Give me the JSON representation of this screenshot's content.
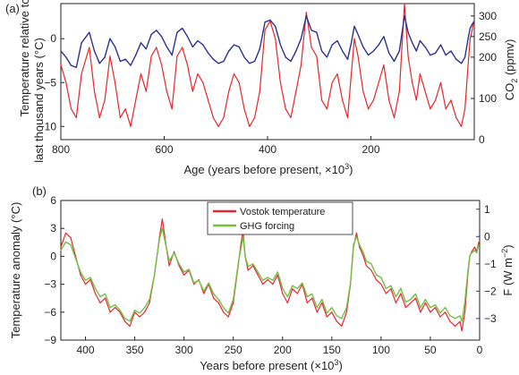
{
  "chart_data": [
    {
      "panel": "(a)",
      "type": "line",
      "xlabel_main": "Age (years before present, ",
      "xlabel_unit": "×10",
      "xlabel_exp": "3",
      "xlabel_close": ")",
      "xlim": [
        800,
        0
      ],
      "xticks": [
        800,
        600,
        400,
        200
      ],
      "ylabel_left_line1": "Temperature relative to",
      "ylabel_left_line2": "last thousand years (°C)",
      "ylim_left": [
        -11.5,
        4
      ],
      "yticks_left": [
        -10,
        -5,
        0
      ],
      "ylabel_right_prefix": "CO",
      "ylabel_right_sub": "2",
      "ylabel_right_suffix": " (ppmv)",
      "ylim_right": [
        0,
        330
      ],
      "yticks_right": [
        0,
        100,
        200,
        250,
        300
      ],
      "grid": false,
      "series": [
        {
          "color": "#e8262a",
          "axis": "left",
          "x": [
            800,
            790,
            780,
            770,
            760,
            745,
            735,
            725,
            715,
            705,
            695,
            685,
            675,
            665,
            655,
            645,
            635,
            625,
            615,
            605,
            595,
            585,
            575,
            565,
            555,
            545,
            535,
            525,
            515,
            505,
            495,
            485,
            475,
            465,
            455,
            445,
            435,
            425,
            415,
            405,
            395,
            385,
            375,
            365,
            355,
            345,
            335,
            325,
            315,
            305,
            295,
            285,
            275,
            265,
            255,
            245,
            238,
            232,
            225,
            215,
            205,
            195,
            185,
            175,
            165,
            155,
            145,
            135,
            128,
            120,
            112,
            105,
            95,
            85,
            75,
            65,
            55,
            45,
            35,
            25,
            18,
            12,
            8,
            4,
            1
          ],
          "y": [
            -3,
            -5,
            -8,
            -9,
            -4,
            -1,
            -6,
            -9,
            -7,
            -2,
            -5,
            -9,
            -8,
            -10,
            -7,
            -4,
            -6,
            -2,
            -1,
            -3,
            -6,
            -8,
            -2,
            -1,
            -3,
            -6,
            -4,
            -5,
            -7,
            -9,
            -10,
            -9,
            -6,
            -4,
            -5,
            -8,
            -10,
            -9,
            -6,
            1,
            2,
            0,
            -5,
            -8,
            -9,
            -6,
            -3,
            3,
            -1,
            -2,
            -7,
            -8,
            -5,
            -4,
            -7,
            -9,
            -4,
            0,
            -2,
            -6,
            -8,
            -7,
            -5,
            -3,
            -7,
            -9,
            -6,
            4,
            -2,
            -5,
            -7,
            -4,
            -6,
            -8,
            -7,
            -5,
            -8,
            -7,
            -9,
            -10,
            -8,
            -3,
            0,
            1,
            2
          ]
        },
        {
          "color": "#2e3192",
          "axis": "right",
          "x": [
            800,
            790,
            780,
            770,
            760,
            745,
            735,
            725,
            715,
            705,
            695,
            685,
            675,
            665,
            655,
            645,
            635,
            625,
            615,
            605,
            595,
            585,
            575,
            565,
            555,
            545,
            535,
            525,
            515,
            505,
            495,
            485,
            475,
            465,
            455,
            445,
            435,
            425,
            415,
            405,
            395,
            385,
            375,
            365,
            355,
            345,
            335,
            325,
            315,
            305,
            295,
            285,
            275,
            265,
            255,
            245,
            238,
            232,
            225,
            215,
            205,
            195,
            185,
            175,
            165,
            155,
            145,
            135,
            128,
            120,
            112,
            105,
            95,
            85,
            75,
            65,
            55,
            45,
            35,
            25,
            18,
            12,
            8,
            4,
            1
          ],
          "y": [
            215,
            200,
            180,
            175,
            235,
            260,
            215,
            185,
            200,
            245,
            225,
            190,
            195,
            180,
            205,
            235,
            220,
            255,
            265,
            250,
            225,
            205,
            260,
            270,
            250,
            225,
            240,
            230,
            210,
            195,
            185,
            190,
            215,
            230,
            225,
            200,
            185,
            190,
            220,
            285,
            290,
            275,
            230,
            200,
            190,
            215,
            245,
            300,
            265,
            260,
            215,
            200,
            230,
            240,
            215,
            195,
            235,
            275,
            255,
            225,
            205,
            215,
            230,
            250,
            210,
            190,
            215,
            300,
            260,
            235,
            215,
            240,
            225,
            205,
            210,
            230,
            205,
            215,
            195,
            185,
            200,
            245,
            270,
            280,
            285
          ]
        }
      ]
    },
    {
      "panel": "(b)",
      "type": "line",
      "xlabel_main": "Years before present (",
      "xlabel_unit": "×10",
      "xlabel_exp": "3",
      "xlabel_close": ")",
      "xlim": [
        425,
        0
      ],
      "xticks": [
        400,
        350,
        300,
        250,
        200,
        150,
        100,
        50,
        0
      ],
      "ylabel_left": "Temperature anomaly (°C)",
      "ylim_left": [
        -9,
        6
      ],
      "yticks_left": [
        -9,
        -6,
        -3,
        0,
        3,
        6
      ],
      "ylabel_right_prefix": "F (W m",
      "ylabel_right_sup": "−2",
      "ylabel_right_suffix": ")",
      "ylim_right": [
        -3.79,
        1.32
      ],
      "yticks_right": [
        -3,
        -2,
        -1,
        0,
        1
      ],
      "legend_position": "top-center",
      "grid": false,
      "series": [
        {
          "name": "Vostok temperature",
          "color": "#e8262a",
          "axis": "left",
          "x": [
            425,
            420,
            415,
            410,
            405,
            400,
            395,
            390,
            385,
            380,
            375,
            370,
            365,
            360,
            355,
            350,
            345,
            340,
            335,
            330,
            325,
            322,
            318,
            315,
            310,
            305,
            300,
            295,
            290,
            285,
            280,
            275,
            270,
            265,
            260,
            255,
            250,
            245,
            242,
            240,
            238,
            235,
            230,
            225,
            220,
            215,
            210,
            205,
            200,
            195,
            190,
            185,
            180,
            175,
            170,
            165,
            160,
            155,
            150,
            145,
            140,
            135,
            131,
            128,
            125,
            122,
            118,
            115,
            110,
            105,
            100,
            95,
            90,
            85,
            80,
            75,
            70,
            65,
            60,
            55,
            50,
            45,
            40,
            35,
            30,
            25,
            20,
            18,
            15,
            12,
            10,
            8,
            5,
            3,
            1
          ],
          "y": [
            1,
            2.5,
            2,
            0,
            -2,
            -3,
            -2.5,
            -4,
            -5,
            -4.5,
            -6,
            -5.5,
            -6,
            -7,
            -7.5,
            -6,
            -6.5,
            -6,
            -5,
            -2,
            2,
            4,
            1,
            -1,
            0.5,
            -1,
            -2,
            -1.5,
            -3,
            -2.5,
            -4,
            -3,
            -4.5,
            -5,
            -6,
            -6.5,
            -5,
            -1,
            1.5,
            2.8,
            0,
            -1.5,
            -1,
            -2,
            -3,
            -2.5,
            -3,
            -2,
            -4,
            -5,
            -3.5,
            -4,
            -3,
            -5,
            -4.5,
            -6,
            -5,
            -6.5,
            -6,
            -7,
            -7.5,
            -6,
            -3,
            1,
            2.5,
            1,
            0,
            -1,
            -1.5,
            -2.5,
            -3,
            -4,
            -3.5,
            -5,
            -4,
            -5.5,
            -5,
            -4.5,
            -6,
            -5,
            -6,
            -5.5,
            -6.5,
            -6,
            -7,
            -7.5,
            -7,
            -8,
            -6,
            -2,
            0,
            0.5,
            1,
            0.5,
            1.5
          ]
        },
        {
          "name": "GHG forcing",
          "color": "#72bf44",
          "axis": "right",
          "x": [
            425,
            420,
            415,
            410,
            405,
            400,
            395,
            390,
            385,
            380,
            375,
            370,
            365,
            360,
            355,
            350,
            345,
            340,
            335,
            330,
            325,
            322,
            318,
            315,
            310,
            305,
            300,
            295,
            290,
            285,
            280,
            275,
            270,
            265,
            260,
            255,
            250,
            245,
            242,
            240,
            238,
            235,
            230,
            225,
            220,
            215,
            210,
            205,
            200,
            195,
            190,
            185,
            180,
            175,
            170,
            165,
            160,
            155,
            150,
            145,
            140,
            135,
            131,
            128,
            125,
            122,
            118,
            115,
            110,
            105,
            100,
            95,
            90,
            85,
            80,
            75,
            70,
            65,
            60,
            55,
            50,
            45,
            40,
            35,
            30,
            25,
            20,
            18,
            15,
            12,
            10,
            8,
            5,
            3,
            1
          ],
          "y": [
            -0.5,
            -0.2,
            -0.3,
            -0.8,
            -1.3,
            -1.6,
            -1.5,
            -1.9,
            -2.2,
            -2.1,
            -2.6,
            -2.5,
            -2.7,
            -3.0,
            -3.1,
            -2.7,
            -2.8,
            -2.6,
            -2.3,
            -1.4,
            -0.1,
            0.3,
            -0.4,
            -0.9,
            -0.6,
            -1.0,
            -1.3,
            -1.2,
            -1.7,
            -1.6,
            -2.0,
            -1.7,
            -2.1,
            -2.3,
            -2.6,
            -2.8,
            -2.3,
            -1.0,
            -0.4,
            0,
            -0.7,
            -1.1,
            -1.0,
            -1.3,
            -1.6,
            -1.5,
            -1.6,
            -1.3,
            -1.9,
            -2.2,
            -1.8,
            -1.9,
            -1.7,
            -2.2,
            -2.1,
            -2.6,
            -2.3,
            -2.8,
            -2.6,
            -2.9,
            -3.0,
            -2.6,
            -1.7,
            -0.3,
            0,
            -0.3,
            -0.6,
            -0.9,
            -1.0,
            -1.4,
            -1.5,
            -1.9,
            -1.8,
            -2.2,
            -1.9,
            -2.4,
            -2.3,
            -2.1,
            -2.6,
            -2.3,
            -2.6,
            -2.5,
            -2.8,
            -2.6,
            -2.9,
            -3.0,
            -2.9,
            -3.1,
            -2.4,
            -1.3,
            -0.7,
            -0.6,
            -0.5,
            -0.6,
            -0.3
          ]
        }
      ]
    }
  ]
}
